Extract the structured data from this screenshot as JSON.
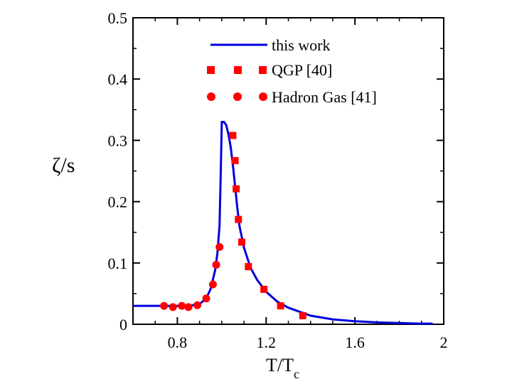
{
  "chart_data": {
    "type": "line",
    "title": "",
    "xlabel": "T/T",
    "xlabel_subscript": "c",
    "ylabel": "ζ/s",
    "xlim": [
      0.6,
      2.0
    ],
    "ylim": [
      0,
      0.5
    ],
    "x_ticks": [
      0.8,
      1.2,
      1.6,
      2
    ],
    "x_tick_labels": [
      "0.8",
      "1.2",
      "1.6",
      "2"
    ],
    "y_ticks": [
      0,
      0.1,
      0.2,
      0.3,
      0.4,
      0.5
    ],
    "y_tick_labels": [
      "0",
      "0.1",
      "0.2",
      "0.3",
      "0.4",
      "0.5"
    ],
    "legend_position": "top-right",
    "series": [
      {
        "name": "this work",
        "kind": "line",
        "color": "#0000dd",
        "x": [
          0.6,
          0.7,
          0.8,
          0.85,
          0.9,
          0.93,
          0.95,
          0.97,
          0.98,
          0.99,
          0.995,
          1.0,
          1.01,
          1.02,
          1.03,
          1.04,
          1.05,
          1.06,
          1.07,
          1.08,
          1.1,
          1.13,
          1.16,
          1.2,
          1.25,
          1.3,
          1.4,
          1.5,
          1.6,
          1.7,
          1.8,
          1.9,
          1.95
        ],
        "y": [
          0.03,
          0.03,
          0.03,
          0.03,
          0.033,
          0.042,
          0.058,
          0.088,
          0.115,
          0.16,
          0.24,
          0.33,
          0.33,
          0.325,
          0.31,
          0.29,
          0.26,
          0.225,
          0.19,
          0.16,
          0.125,
          0.092,
          0.072,
          0.053,
          0.037,
          0.027,
          0.014,
          0.008,
          0.005,
          0.003,
          0.002,
          0.001,
          0.001
        ]
      },
      {
        "name": "QGP [40]",
        "kind": "square",
        "color": "#ff0000",
        "x": [
          1.05,
          1.06,
          1.065,
          1.075,
          1.09,
          1.12,
          1.19,
          1.265,
          1.365
        ],
        "y": [
          0.308,
          0.267,
          0.221,
          0.171,
          0.134,
          0.094,
          0.057,
          0.03,
          0.014
        ]
      },
      {
        "name": "Hadron Gas [41]",
        "kind": "circle",
        "color": "#ff0000",
        "x": [
          0.74,
          0.78,
          0.82,
          0.85,
          0.89,
          0.93,
          0.96,
          0.975,
          0.99
        ],
        "y": [
          0.03,
          0.028,
          0.03,
          0.028,
          0.031,
          0.042,
          0.065,
          0.097,
          0.126
        ]
      }
    ]
  }
}
